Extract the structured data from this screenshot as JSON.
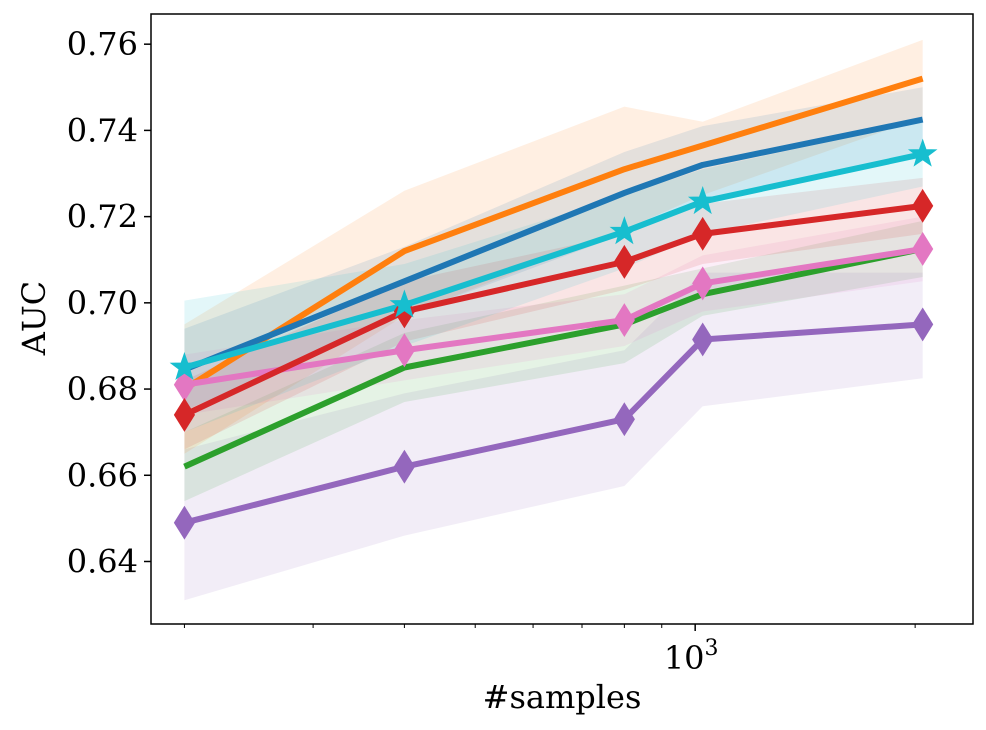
{
  "chart_data": {
    "type": "line",
    "xscale": "log",
    "xlabel": "#samples",
    "ylabel": "AUC",
    "xlim": [
      180,
      2400
    ],
    "ylim": [
      0.6255,
      0.767
    ],
    "x": [
      200,
      400,
      800,
      1024,
      2048
    ],
    "x_tick_labels": [
      {
        "value": 1000,
        "base": "10",
        "exp": "3"
      }
    ],
    "y_ticks": [
      0.64,
      0.66,
      0.68,
      0.7,
      0.72,
      0.74,
      0.76
    ],
    "y_tick_labels": [
      "0.64",
      "0.66",
      "0.68",
      "0.70",
      "0.72",
      "0.74",
      "0.76"
    ],
    "series": [
      {
        "name": "purple",
        "color": "#9467bd",
        "marker": "diamond",
        "values": [
          0.649,
          0.662,
          0.673,
          0.6915,
          0.695
        ],
        "lower": [
          0.631,
          0.646,
          0.6575,
          0.676,
          0.6825
        ],
        "upper": [
          0.666,
          0.679,
          0.689,
          0.707,
          0.707
        ]
      },
      {
        "name": "green",
        "color": "#2ca02c",
        "marker": "none",
        "values": [
          0.662,
          0.685,
          0.695,
          0.702,
          0.7125
        ],
        "lower": [
          0.654,
          0.677,
          0.686,
          0.697,
          0.706
        ],
        "upper": [
          0.67,
          0.693,
          0.704,
          0.708,
          0.719
        ]
      },
      {
        "name": "orange",
        "color": "#ff7f0e",
        "marker": "none",
        "values": [
          0.68,
          0.712,
          0.731,
          0.7365,
          0.752
        ],
        "lower": [
          0.665,
          0.697,
          0.717,
          0.725,
          0.743
        ],
        "upper": [
          0.695,
          0.726,
          0.7455,
          0.742,
          0.761
        ]
      },
      {
        "name": "blue",
        "color": "#1f77b4",
        "marker": "none",
        "values": [
          0.6845,
          0.705,
          0.7255,
          0.732,
          0.7425
        ],
        "lower": [
          0.675,
          0.697,
          0.716,
          0.723,
          0.735
        ],
        "upper": [
          0.694,
          0.713,
          0.735,
          0.741,
          0.75
        ]
      },
      {
        "name": "pink",
        "color": "#e377c2",
        "marker": "diamond",
        "values": [
          0.681,
          0.689,
          0.696,
          0.7045,
          0.7125
        ],
        "lower": [
          0.674,
          0.682,
          0.69,
          0.698,
          0.705
        ],
        "upper": [
          0.688,
          0.696,
          0.702,
          0.711,
          0.72
        ]
      },
      {
        "name": "red",
        "color": "#d62728",
        "marker": "diamond",
        "values": [
          0.674,
          0.698,
          0.7095,
          0.716,
          0.7225
        ],
        "lower": [
          0.666,
          0.691,
          0.703,
          0.709,
          0.716
        ],
        "upper": [
          0.682,
          0.705,
          0.716,
          0.723,
          0.729
        ]
      },
      {
        "name": "cyan",
        "color": "#17becf",
        "marker": "star",
        "values": [
          0.685,
          0.6995,
          0.7165,
          0.7235,
          0.7345
        ],
        "lower": [
          0.67,
          0.69,
          0.708,
          0.716,
          0.727
        ],
        "upper": [
          0.7005,
          0.709,
          0.725,
          0.731,
          0.742
        ]
      }
    ]
  }
}
